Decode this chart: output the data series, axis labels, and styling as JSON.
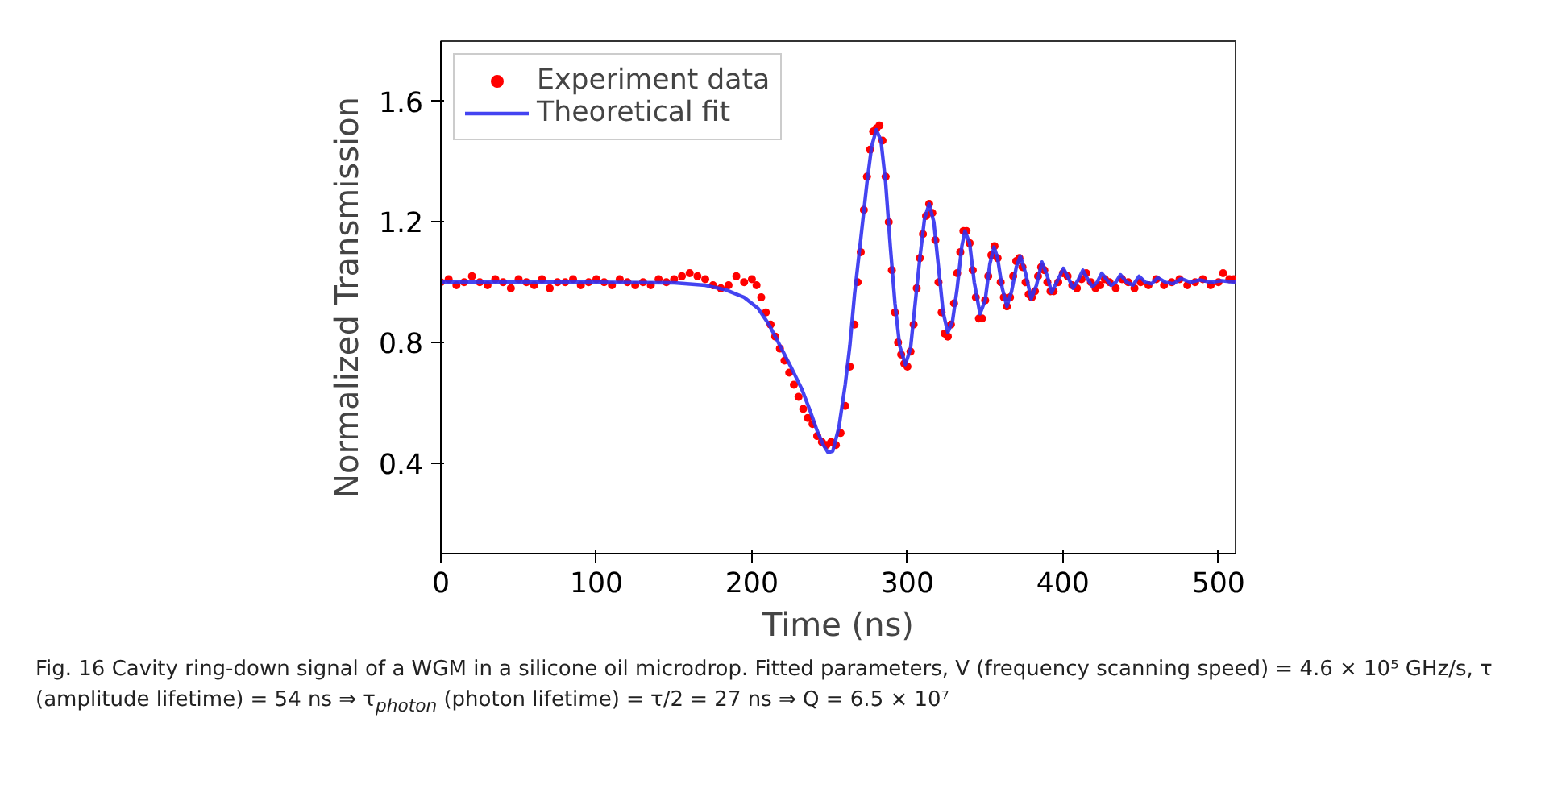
{
  "chart_data": {
    "type": "scatter",
    "xlabel": "Time (ns)",
    "ylabel": "Normalized Transmission",
    "xlim": [
      0,
      511
    ],
    "ylim": [
      0.1,
      1.8
    ],
    "xticks": [
      0,
      100,
      200,
      300,
      400,
      500
    ],
    "yticks": [
      0.4,
      0.8,
      1.2,
      1.6
    ],
    "grid": false,
    "legend": "top left",
    "annotations": [
      "Fig. 16 Cavity ring-down signal of a WGM in a silicone oil microdrop. Fitted parameters, V (frequency scanning speed) = 4.6 × 10⁵ GHz/s, τ (amplitude lifetime) = 54 ns ⇒ τ$_{photon}$ (photon lifetime) = τ/2 = 27 ns ⇒ Q = 6.5 × 10⁷"
    ],
    "series": [
      {
        "name": "Experiment data",
        "marker": "circle",
        "color": "#ff0000",
        "x": [
          0,
          5,
          10,
          15,
          20,
          25,
          30,
          35,
          40,
          45,
          50,
          55,
          60,
          65,
          70,
          75,
          80,
          85,
          90,
          95,
          100,
          105,
          110,
          115,
          120,
          125,
          130,
          135,
          140,
          145,
          150,
          155,
          160,
          165,
          170,
          175,
          180,
          185,
          190,
          195,
          200,
          203,
          206,
          209,
          212,
          215,
          218,
          221,
          224,
          227,
          230,
          233,
          236,
          239,
          242,
          245,
          248,
          251,
          254,
          257,
          260,
          263,
          266,
          268,
          270,
          272,
          274,
          276,
          278,
          280,
          282,
          284,
          286,
          288,
          290,
          292,
          294,
          296,
          298,
          300,
          302,
          304,
          306,
          308,
          310,
          312,
          314,
          316,
          318,
          320,
          322,
          324,
          326,
          328,
          330,
          332,
          334,
          336,
          338,
          340,
          342,
          344,
          346,
          348,
          350,
          352,
          354,
          356,
          358,
          360,
          362,
          364,
          366,
          368,
          370,
          372,
          374,
          376,
          378,
          380,
          382,
          384,
          386,
          388,
          390,
          392,
          394,
          397,
          400,
          403,
          406,
          409,
          412,
          415,
          418,
          421,
          424,
          427,
          430,
          434,
          438,
          442,
          446,
          450,
          455,
          460,
          465,
          470,
          475,
          480,
          485,
          490,
          495,
          500,
          503,
          507,
          510
        ],
        "values": [
          1.0,
          1.01,
          0.99,
          1.0,
          1.02,
          1.0,
          0.99,
          1.01,
          1.0,
          0.98,
          1.01,
          1.0,
          0.99,
          1.01,
          0.98,
          1.0,
          1.0,
          1.01,
          0.99,
          1.0,
          1.01,
          1.0,
          0.99,
          1.01,
          1.0,
          0.99,
          1.0,
          0.99,
          1.01,
          1.0,
          1.01,
          1.02,
          1.03,
          1.02,
          1.01,
          0.99,
          0.98,
          0.99,
          1.02,
          1.0,
          1.01,
          0.99,
          0.95,
          0.9,
          0.86,
          0.82,
          0.78,
          0.74,
          0.7,
          0.66,
          0.62,
          0.58,
          0.55,
          0.53,
          0.49,
          0.47,
          0.46,
          0.47,
          0.46,
          0.5,
          0.59,
          0.72,
          0.86,
          1.0,
          1.1,
          1.24,
          1.35,
          1.44,
          1.5,
          1.51,
          1.52,
          1.47,
          1.35,
          1.2,
          1.04,
          0.9,
          0.8,
          0.76,
          0.73,
          0.72,
          0.77,
          0.86,
          0.98,
          1.08,
          1.16,
          1.22,
          1.26,
          1.23,
          1.14,
          1.0,
          0.9,
          0.83,
          0.82,
          0.86,
          0.93,
          1.03,
          1.1,
          1.17,
          1.17,
          1.13,
          1.04,
          0.95,
          0.88,
          0.88,
          0.94,
          1.02,
          1.09,
          1.12,
          1.08,
          1.0,
          0.95,
          0.92,
          0.95,
          1.02,
          1.07,
          1.08,
          1.05,
          1.0,
          0.96,
          0.95,
          0.97,
          1.02,
          1.05,
          1.04,
          1.0,
          0.97,
          0.97,
          1.0,
          1.03,
          1.02,
          0.99,
          0.98,
          1.01,
          1.03,
          1.0,
          0.98,
          0.99,
          1.01,
          1.0,
          0.98,
          1.01,
          1.0,
          0.98,
          1.0,
          0.99,
          1.01,
          0.99,
          1.0,
          1.01,
          0.99,
          1.0,
          1.01,
          0.99,
          1.0,
          1.03,
          1.01,
          1.01
        ]
      },
      {
        "name": "Theoretical fit",
        "type": "line",
        "line_style": "solid",
        "color": "#3030f0",
        "x": [
          0,
          50,
          100,
          150,
          170,
          183,
          195,
          204,
          211,
          218,
          225,
          232,
          237,
          242,
          246,
          249,
          252,
          256,
          260,
          263,
          266,
          270,
          274,
          277,
          280,
          283,
          286,
          289,
          292,
          295,
          298.7,
          302,
          305,
          308,
          311,
          314,
          317,
          320,
          323,
          326,
          329,
          332,
          335,
          337,
          340,
          343,
          346.7,
          350,
          353,
          355.7,
          358,
          361,
          364,
          367,
          370,
          372.6,
          376,
          379.6,
          383,
          386.5,
          390,
          392.7,
          396,
          400.3,
          403,
          406.5,
          410,
          412.8,
          416,
          419,
          422,
          425,
          428,
          431,
          434,
          437,
          441,
          445,
          449,
          453,
          457,
          461,
          466,
          471,
          476,
          482,
          488,
          495,
          502,
          511
        ],
        "values": [
          1.0,
          1.0,
          1.0,
          0.998,
          0.99,
          0.975,
          0.95,
          0.913,
          0.86,
          0.79,
          0.72,
          0.647,
          0.58,
          0.507,
          0.46,
          0.435,
          0.44,
          0.52,
          0.66,
          0.79,
          0.96,
          1.143,
          1.33,
          1.45,
          1.506,
          1.47,
          1.33,
          1.12,
          0.93,
          0.79,
          0.727,
          0.78,
          0.93,
          1.08,
          1.21,
          1.26,
          1.2,
          1.05,
          0.9,
          0.833,
          0.87,
          0.98,
          1.12,
          1.17,
          1.13,
          1.0,
          0.895,
          0.94,
          1.06,
          1.117,
          1.08,
          0.98,
          0.92,
          0.97,
          1.05,
          1.087,
          1.03,
          0.945,
          0.99,
          1.067,
          1.02,
          0.966,
          1.0,
          1.046,
          1.02,
          0.98,
          1.01,
          1.04,
          1.01,
          0.985,
          1.0,
          1.03,
          1.01,
          0.99,
          1.0,
          1.025,
          1.0,
          0.99,
          1.02,
          1.0,
          0.995,
          1.015,
          1.0,
          0.995,
          1.012,
          1.0,
          1.008,
          1.0,
          1.005,
          1.0
        ]
      }
    ]
  }
}
